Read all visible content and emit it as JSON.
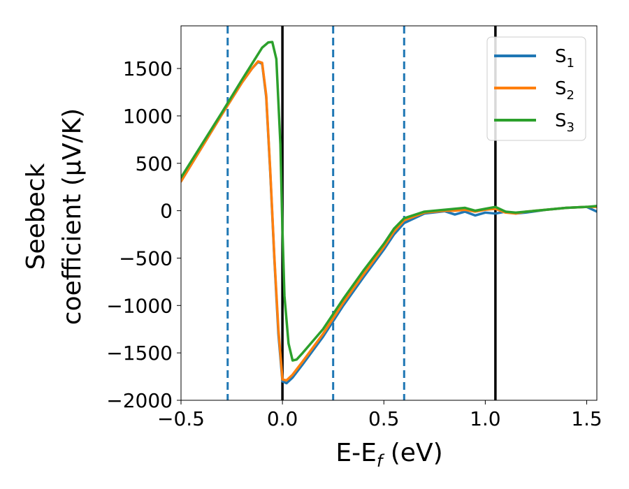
{
  "chart_data": {
    "type": "line",
    "xlabel": "E-E",
    "xlabel_sub": "f",
    "xlabel_unit": " (eV)",
    "ylabel_line1": "Seebeck",
    "ylabel_line2": "coefficient  (μV/K)",
    "xlim": [
      -0.5,
      1.55
    ],
    "ylim": [
      -2000,
      1950
    ],
    "x_ticks": [
      -0.5,
      0.0,
      0.5,
      1.0,
      1.5
    ],
    "x_tick_labels": [
      "−0.5",
      "0.0",
      "0.5",
      "1.0",
      "1.5"
    ],
    "y_ticks": [
      -2000,
      -1500,
      -1000,
      -500,
      0,
      500,
      1000,
      1500
    ],
    "y_tick_labels": [
      "−2000",
      "−1500",
      "−1000",
      "−500",
      "0",
      "500",
      "1000",
      "1500"
    ],
    "grid": false,
    "legend_position": "top-right",
    "vertical_lines": [
      {
        "x": -0.27,
        "style": "dashed",
        "color": "#1f77b4"
      },
      {
        "x": 0.0,
        "style": "solid",
        "color": "#000000"
      },
      {
        "x": 0.25,
        "style": "dashed",
        "color": "#1f77b4"
      },
      {
        "x": 0.6,
        "style": "dashed",
        "color": "#1f77b4"
      },
      {
        "x": 1.05,
        "style": "solid",
        "color": "#000000"
      }
    ],
    "series": [
      {
        "name": "S",
        "name_sub": "1",
        "color": "#1f77b4",
        "x": [
          -0.5,
          -0.4,
          -0.3,
          -0.2,
          -0.15,
          -0.12,
          -0.1,
          -0.08,
          -0.06,
          -0.04,
          -0.02,
          0.0,
          0.02,
          0.05,
          0.1,
          0.2,
          0.3,
          0.4,
          0.5,
          0.55,
          0.6,
          0.7,
          0.8,
          0.85,
          0.9,
          0.95,
          1.0,
          1.05,
          1.1,
          1.15,
          1.2,
          1.3,
          1.4,
          1.5,
          1.55
        ],
        "y": [
          310,
          660,
          1010,
          1350,
          1500,
          1570,
          1550,
          1200,
          400,
          -500,
          -1300,
          -1800,
          -1820,
          -1760,
          -1620,
          -1330,
          -1000,
          -700,
          -410,
          -250,
          -130,
          -30,
          -5,
          -40,
          -10,
          -50,
          -20,
          -30,
          -10,
          -30,
          -20,
          10,
          30,
          40,
          -10
        ]
      },
      {
        "name": "S",
        "name_sub": "2",
        "color": "#ff7f0e",
        "x": [
          -0.5,
          -0.4,
          -0.3,
          -0.2,
          -0.15,
          -0.12,
          -0.1,
          -0.08,
          -0.06,
          -0.04,
          -0.02,
          0.0,
          0.02,
          0.05,
          0.1,
          0.2,
          0.3,
          0.4,
          0.5,
          0.55,
          0.6,
          0.7,
          0.8,
          0.85,
          0.9,
          0.95,
          1.0,
          1.05,
          1.1,
          1.15,
          1.2,
          1.3,
          1.4,
          1.5,
          1.55
        ],
        "y": [
          310,
          660,
          1010,
          1350,
          1500,
          1575,
          1560,
          1220,
          420,
          -480,
          -1250,
          -1780,
          -1790,
          -1730,
          -1590,
          -1300,
          -970,
          -670,
          -380,
          -220,
          -100,
          -20,
          0,
          0,
          10,
          -10,
          10,
          20,
          -20,
          -30,
          -10,
          10,
          30,
          40,
          40
        ]
      },
      {
        "name": "S",
        "name_sub": "3",
        "color": "#2ca02c",
        "x": [
          -0.5,
          -0.4,
          -0.3,
          -0.2,
          -0.15,
          -0.1,
          -0.07,
          -0.05,
          -0.03,
          -0.01,
          0.0,
          0.01,
          0.03,
          0.05,
          0.07,
          0.1,
          0.2,
          0.3,
          0.4,
          0.5,
          0.55,
          0.6,
          0.7,
          0.8,
          0.85,
          0.9,
          0.95,
          1.0,
          1.05,
          1.1,
          1.15,
          1.2,
          1.3,
          1.4,
          1.5,
          1.55
        ],
        "y": [
          350,
          690,
          1030,
          1380,
          1550,
          1720,
          1775,
          1780,
          1600,
          700,
          -200,
          -900,
          -1400,
          -1580,
          -1570,
          -1500,
          -1250,
          -930,
          -630,
          -350,
          -190,
          -80,
          -10,
          10,
          20,
          30,
          0,
          20,
          40,
          -10,
          -20,
          -10,
          10,
          30,
          40,
          50
        ]
      }
    ]
  }
}
